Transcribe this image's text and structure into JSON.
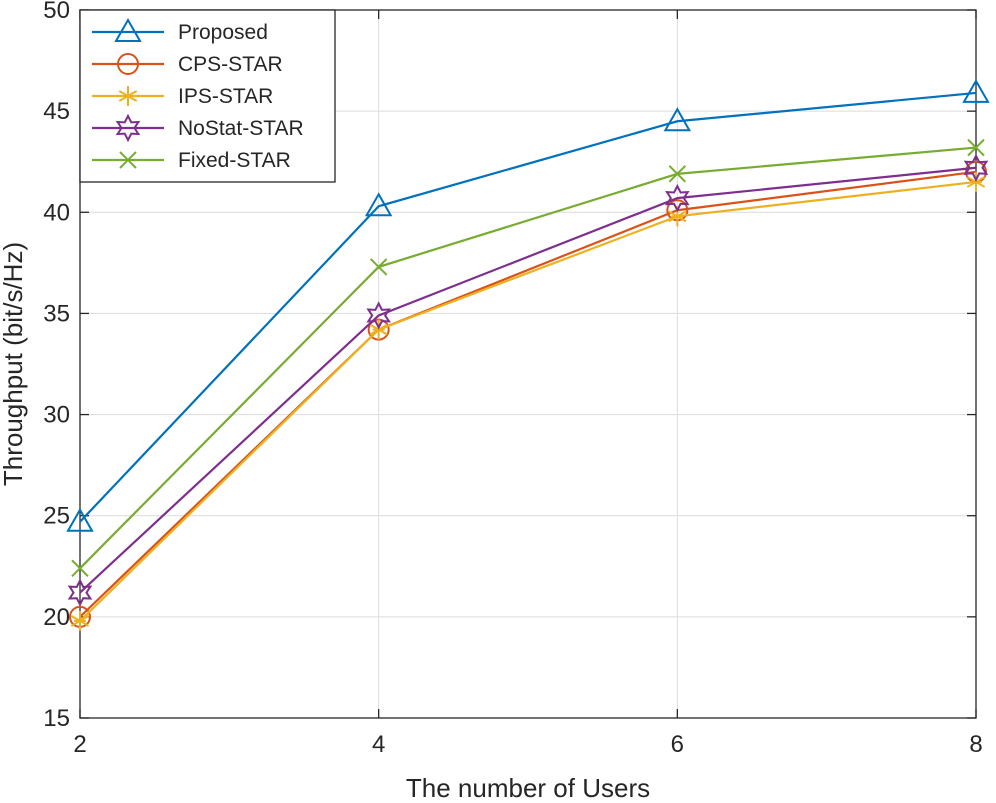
{
  "chart_data": {
    "type": "line",
    "title": "",
    "xlabel": "The number of Users",
    "ylabel": "Throughput (bit/s/Hz)",
    "x": [
      2,
      4,
      6,
      8
    ],
    "xlim": [
      2,
      8
    ],
    "ylim": [
      15,
      50
    ],
    "xticks": [
      2,
      4,
      6,
      8
    ],
    "yticks": [
      15,
      20,
      25,
      30,
      35,
      40,
      45,
      50
    ],
    "grid": true,
    "legend_position": "top-left",
    "series": [
      {
        "name": "Proposed",
        "values": [
          24.7,
          40.3,
          44.5,
          45.9
        ],
        "color": "#0072BD",
        "marker": "triangle"
      },
      {
        "name": "CPS-STAR",
        "values": [
          20.0,
          34.2,
          40.1,
          42.0
        ],
        "color": "#D95319",
        "marker": "circle"
      },
      {
        "name": "IPS-STAR",
        "values": [
          19.8,
          34.2,
          39.8,
          41.5
        ],
        "color": "#EDB120",
        "marker": "asterisk"
      },
      {
        "name": "NoStat-STAR",
        "values": [
          21.2,
          34.9,
          40.7,
          42.2
        ],
        "color": "#7E2F8E",
        "marker": "hexagram"
      },
      {
        "name": "Fixed-STAR",
        "values": [
          22.4,
          37.3,
          41.9,
          43.2
        ],
        "color": "#77AC30",
        "marker": "x"
      }
    ]
  }
}
